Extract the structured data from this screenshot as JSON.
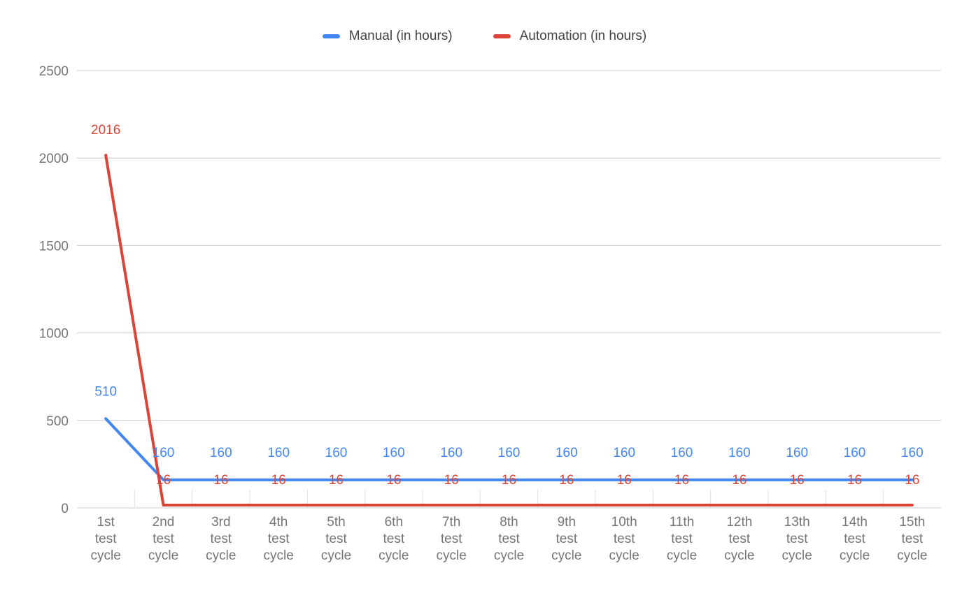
{
  "chart_data": {
    "type": "line",
    "title": "",
    "xlabel": "",
    "ylabel": "",
    "ylim": [
      0,
      2500
    ],
    "yticks": [
      0,
      500,
      1000,
      1500,
      2000,
      2500
    ],
    "grid": true,
    "legend_position": "top",
    "grid_color": "#cccccc",
    "tick_color": "#e0e0e0",
    "categories": [
      "1st test cycle",
      "2nd test cycle",
      "3rd test cycle",
      "4th test cycle",
      "5th test cycle",
      "6th test cycle",
      "7th test cycle",
      "8th test cycle",
      "9th test cycle",
      "10th test cycle",
      "11th test cycle",
      "12th test cycle",
      "13th test cycle",
      "14th test cycle",
      "15th test cycle"
    ],
    "series": [
      {
        "id": "manual",
        "name": "Manual (in hours)",
        "color": "#4285f4",
        "values": [
          510,
          160,
          160,
          160,
          160,
          160,
          160,
          160,
          160,
          160,
          160,
          160,
          160,
          160,
          160
        ]
      },
      {
        "id": "automation",
        "name": "Automation (in hours)",
        "color": "#db4437",
        "values": [
          2016,
          16,
          16,
          16,
          16,
          16,
          16,
          16,
          16,
          16,
          16,
          16,
          16,
          16,
          16
        ]
      }
    ]
  }
}
